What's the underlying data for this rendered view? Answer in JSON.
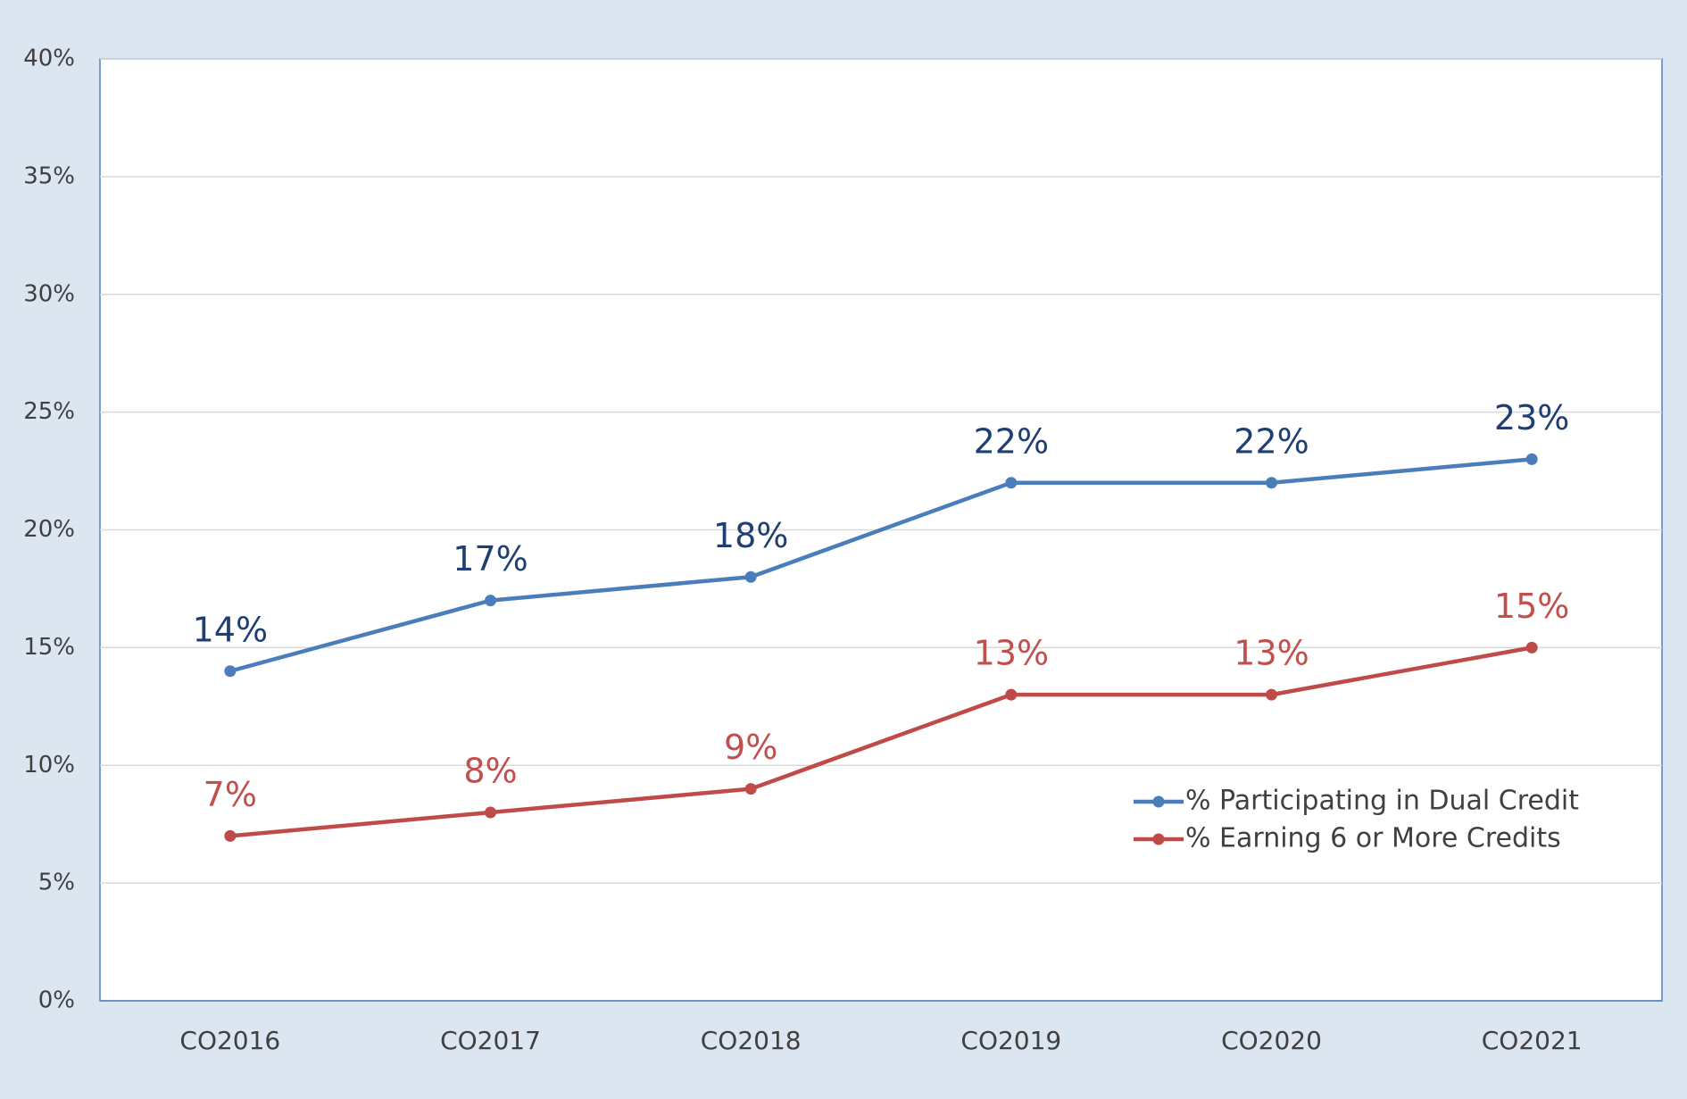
{
  "chart_data": {
    "type": "line",
    "categories": [
      "CO2016",
      "CO2017",
      "CO2018",
      "CO2019",
      "CO2020",
      "CO2021"
    ],
    "series": [
      {
        "name": "% Participating in Dual Credit",
        "color": "#4a7ebb",
        "label_color": "#1f3f73",
        "values": [
          14,
          17,
          18,
          22,
          22,
          23
        ],
        "value_labels": [
          "14%",
          "17%",
          "18%",
          "22%",
          "22%",
          "23%"
        ]
      },
      {
        "name": "% Earning 6 or More Credits",
        "color": "#be4b48",
        "label_color": "#c0504d",
        "values": [
          7,
          8,
          9,
          13,
          13,
          15
        ],
        "value_labels": [
          "7%",
          "8%",
          "9%",
          "13%",
          "13%",
          "15%"
        ]
      }
    ],
    "ylim": [
      0,
      40
    ],
    "yticks": [
      {
        "value": 0,
        "label": "0%"
      },
      {
        "value": 5,
        "label": "5%"
      },
      {
        "value": 10,
        "label": "10%"
      },
      {
        "value": 15,
        "label": "15%"
      },
      {
        "value": 20,
        "label": "20%"
      },
      {
        "value": 25,
        "label": "25%"
      },
      {
        "value": 30,
        "label": "30%"
      },
      {
        "value": 35,
        "label": "35%"
      },
      {
        "value": 40,
        "label": "40%"
      }
    ],
    "grid": true,
    "legend": "right"
  }
}
